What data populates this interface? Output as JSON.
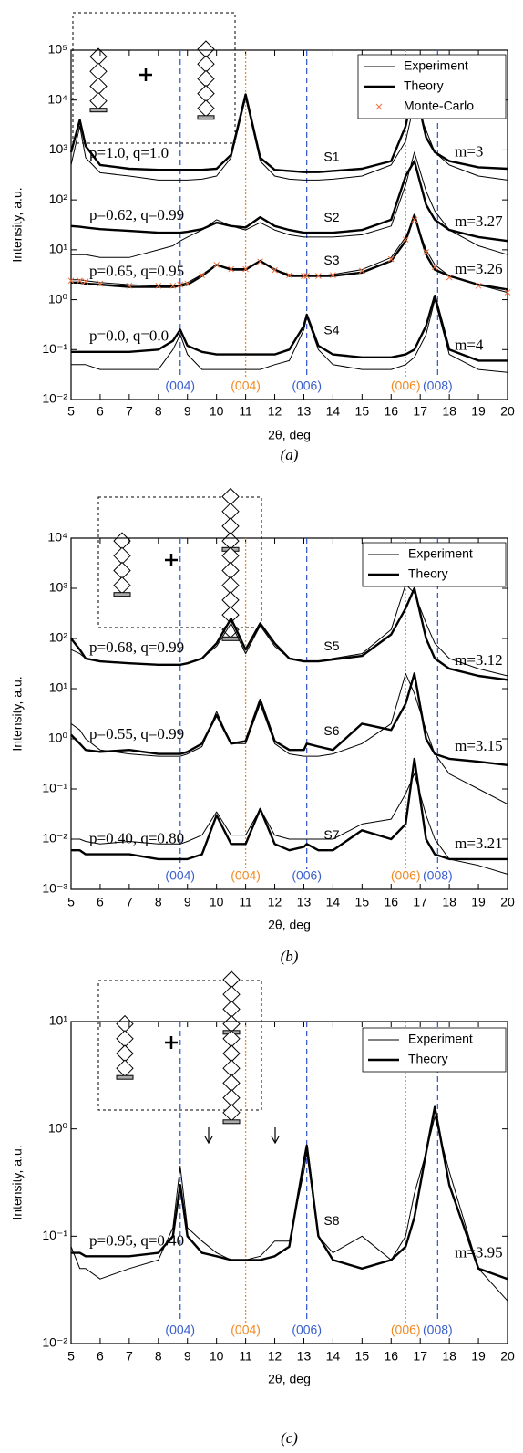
{
  "chart_data": [
    {
      "type": "line",
      "caption": "(a)",
      "xlabel": "2θ, deg",
      "ylabel": "Intensity, a.u.",
      "log_y": true,
      "xlim": [
        5,
        20
      ],
      "xticks": [
        5,
        6,
        7,
        8,
        9,
        10,
        11,
        12,
        13,
        14,
        15,
        16,
        17,
        18,
        19,
        20
      ],
      "ylim": [
        0.01,
        100000
      ],
      "yticks": [
        {
          "value": 0.01,
          "label": "10⁻²"
        },
        {
          "value": 0.1,
          "label": "10⁻¹"
        },
        {
          "value": 1,
          "label": "10⁰"
        },
        {
          "value": 10,
          "label": "10¹"
        },
        {
          "value": 100,
          "label": "10²"
        },
        {
          "value": 1000,
          "label": "10³"
        },
        {
          "value": 10000,
          "label": "10⁴"
        },
        {
          "value": 100000,
          "label": "10⁵"
        }
      ],
      "legend": [
        {
          "name": "Experiment",
          "color": "#000000",
          "width": 1
        },
        {
          "name": "Theory",
          "color": "#000000",
          "width": 2.4
        },
        {
          "name": "Monte-Carlo",
          "color": "#f07040",
          "marker": "x"
        }
      ],
      "reflections": [
        {
          "label": "(004)",
          "x": 8.75,
          "color": "#3a5fcd"
        },
        {
          "label": "(004)",
          "x": 11,
          "color": "#f08a24"
        },
        {
          "label": "(006)",
          "x": 13.1,
          "color": "#3a5fcd"
        },
        {
          "label": "(006)",
          "x": 16.5,
          "color": "#f08a24"
        },
        {
          "label": "(008)",
          "x": 17.6,
          "color": "#3a5fcd"
        }
      ],
      "x": [
        5,
        5.3,
        5.5,
        6,
        7,
        8,
        8.5,
        8.75,
        9,
        9.5,
        10,
        10.5,
        11,
        11.5,
        12,
        12.5,
        13,
        13.1,
        13.5,
        14,
        15,
        16,
        16.5,
        16.8,
        17.2,
        17.5,
        18,
        19,
        20
      ],
      "samples": [
        {
          "name": "S1",
          "params": "p=1.0, q=1.0",
          "m": "m=3",
          "curves": [
            [
              500,
              3000,
              700,
              350,
              300,
              250,
              250,
              250,
              250,
              260,
              300,
              700,
              11000,
              600,
              300,
              260,
              250,
              250,
              250,
              260,
              300,
              500,
              1500,
              9000,
              2500,
              900,
              500,
              300,
              250
            ],
            [
              900,
              4000,
              1200,
              500,
              420,
              400,
              400,
              400,
              400,
              400,
              420,
              800,
              13000,
              700,
              400,
              380,
              360,
              360,
              360,
              380,
              420,
              600,
              3000,
              20000,
              1800,
              900,
              600,
              450,
              420
            ]
          ]
        },
        {
          "name": "S2",
          "params": "p=0.62, q=0.99",
          "m": "m=3.27",
          "curves": [
            [
              8,
              8,
              8,
              7,
              7,
              10,
              12,
              15,
              18,
              25,
              40,
              30,
              25,
              35,
              25,
              20,
              18,
              18,
              18,
              18,
              20,
              30,
              200,
              900,
              150,
              60,
              25,
              12,
              8
            ],
            [
              30,
              29,
              28,
              26,
              24,
              22,
              22,
              22,
              23,
              26,
              35,
              30,
              28,
              45,
              30,
              25,
              22,
              22,
              22,
              22,
              25,
              40,
              300,
              600,
              80,
              40,
              25,
              18,
              15
            ]
          ]
        },
        {
          "name": "S3",
          "params": "p=0.65, q=0.95",
          "m": "m=3.26",
          "curves": [
            [
              2.5,
              2.5,
              2.4,
              2.2,
              2,
              1.9,
              1.9,
              2,
              2.2,
              3.2,
              5,
              4.2,
              4.2,
              6,
              4,
              3.2,
              3,
              3,
              3,
              3.2,
              4,
              7,
              18,
              45,
              10,
              5,
              3,
              2,
              1.4
            ],
            [
              2.2,
              2.2,
              2.1,
              2,
              1.8,
              1.8,
              1.8,
              1.9,
              2,
              3,
              5,
              4,
              4,
              6,
              4,
              3,
              3,
              3,
              3,
              3,
              3.5,
              6,
              15,
              50,
              8,
              4,
              3,
              2,
              1.6
            ],
            [
              2.4,
              2.4,
              2.3,
              2.1,
              1.9,
              1.9,
              1.9,
              2,
              2.1,
              3.1,
              5,
              4.1,
              4.1,
              5.8,
              3.9,
              3.1,
              3,
              3,
              3,
              3.1,
              3.8,
              6.5,
              16,
              40,
              9,
              4.5,
              2.8,
              1.9,
              1.4
            ]
          ]
        },
        {
          "name": "S4",
          "params": "p=0.0, q=0.0",
          "m": "m=4",
          "curves": [
            [
              0.05,
              0.05,
              0.05,
              0.04,
              0.04,
              0.04,
              0.1,
              0.2,
              0.08,
              0.04,
              0.04,
              0.04,
              0.04,
              0.04,
              0.05,
              0.06,
              0.25,
              0.45,
              0.1,
              0.05,
              0.04,
              0.04,
              0.05,
              0.07,
              0.2,
              1.0,
              0.08,
              0.04,
              0.035
            ],
            [
              0.09,
              0.09,
              0.09,
              0.09,
              0.09,
              0.1,
              0.15,
              0.25,
              0.12,
              0.09,
              0.08,
              0.08,
              0.08,
              0.08,
              0.08,
              0.1,
              0.3,
              0.5,
              0.12,
              0.08,
              0.07,
              0.07,
              0.08,
              0.1,
              0.3,
              1.2,
              0.1,
              0.06,
              0.06
            ]
          ]
        }
      ]
    },
    {
      "type": "line",
      "caption": "(b)",
      "xlabel": "2θ, deg",
      "ylabel": "Intensity, a.u.",
      "log_y": true,
      "xlim": [
        5,
        20
      ],
      "xticks": [
        5,
        6,
        7,
        8,
        9,
        10,
        11,
        12,
        13,
        14,
        15,
        16,
        17,
        18,
        19,
        20
      ],
      "ylim": [
        0.001,
        10000
      ],
      "yticks": [
        {
          "value": 0.001,
          "label": "10⁻³"
        },
        {
          "value": 0.01,
          "label": "10⁻²"
        },
        {
          "value": 0.1,
          "label": "10⁻¹"
        },
        {
          "value": 1,
          "label": "10⁰"
        },
        {
          "value": 10,
          "label": "10¹"
        },
        {
          "value": 100,
          "label": "10²"
        },
        {
          "value": 1000,
          "label": "10³"
        },
        {
          "value": 10000,
          "label": "10⁴"
        }
      ],
      "legend": [
        {
          "name": "Experiment",
          "color": "#000000",
          "width": 1
        },
        {
          "name": "Theory",
          "color": "#000000",
          "width": 2.4
        }
      ],
      "reflections": [
        {
          "label": "(004)",
          "x": 8.75,
          "color": "#3a5fcd"
        },
        {
          "label": "(004)",
          "x": 11,
          "color": "#f08a24"
        },
        {
          "label": "(006)",
          "x": 13.1,
          "color": "#3a5fcd"
        },
        {
          "label": "(006)",
          "x": 16.5,
          "color": "#f08a24"
        },
        {
          "label": "(008)",
          "x": 17.6,
          "color": "#3a5fcd"
        }
      ],
      "x": [
        5,
        5.3,
        5.5,
        6,
        7,
        8,
        8.5,
        8.75,
        9,
        9.5,
        10,
        10.5,
        11,
        11.5,
        12,
        12.5,
        13,
        13.1,
        13.5,
        14,
        15,
        16,
        16.5,
        16.8,
        17.2,
        17.5,
        18,
        19,
        20
      ],
      "samples": [
        {
          "name": "S5",
          "params": "p=0.68, q=0.99",
          "m": "m=3.12",
          "curves": [
            [
              60,
              50,
              40,
              35,
              32,
              30,
              30,
              30,
              32,
              40,
              70,
              200,
              50,
              180,
              70,
              40,
              35,
              35,
              35,
              40,
              50,
              150,
              1200,
              800,
              200,
              80,
              40,
              25,
              18
            ],
            [
              100,
              60,
              40,
              35,
              32,
              30,
              30,
              30,
              32,
              40,
              80,
              250,
              60,
              200,
              80,
              40,
              35,
              35,
              35,
              38,
              45,
              120,
              400,
              1000,
              100,
              40,
              25,
              18,
              15
            ]
          ]
        },
        {
          "name": "S6",
          "params": "p=0.55, q=0.99",
          "m": "m=3.15",
          "curves": [
            [
              2,
              1.5,
              1,
              0.6,
              0.5,
              0.45,
              0.45,
              0.45,
              0.5,
              0.7,
              3.5,
              0.8,
              0.8,
              5,
              0.8,
              0.5,
              0.45,
              0.45,
              0.45,
              0.5,
              0.8,
              2,
              20,
              8,
              1.5,
              0.5,
              0.2,
              0.1,
              0.05
            ],
            [
              1.2,
              0.8,
              0.6,
              0.55,
              0.6,
              0.5,
              0.5,
              0.5,
              0.55,
              0.8,
              3,
              0.8,
              0.9,
              6,
              0.9,
              0.6,
              0.6,
              0.8,
              0.7,
              0.6,
              2,
              1.5,
              5,
              20,
              1,
              0.5,
              0.4,
              0.35,
              0.3
            ]
          ]
        },
        {
          "name": "S7",
          "params": "p=0.40, q=0.80",
          "m": "m=3.21",
          "curves": [
            [
              0.01,
              0.01,
              0.009,
              0.008,
              0.009,
              0.008,
              0.008,
              0.008,
              0.009,
              0.012,
              0.035,
              0.012,
              0.012,
              0.04,
              0.012,
              0.01,
              0.01,
              0.01,
              0.01,
              0.01,
              0.02,
              0.025,
              0.08,
              0.2,
              0.03,
              0.01,
              0.004,
              0.003,
              0.002
            ],
            [
              0.006,
              0.006,
              0.005,
              0.005,
              0.005,
              0.004,
              0.004,
              0.004,
              0.004,
              0.005,
              0.03,
              0.008,
              0.008,
              0.04,
              0.008,
              0.006,
              0.007,
              0.008,
              0.006,
              0.006,
              0.015,
              0.01,
              0.02,
              0.4,
              0.01,
              0.005,
              0.004,
              0.004,
              0.004
            ]
          ]
        }
      ]
    },
    {
      "type": "line",
      "caption": "(c)",
      "xlabel": "2θ, deg",
      "ylabel": "Intensity, a.u.",
      "log_y": true,
      "xlim": [
        5,
        20
      ],
      "xticks": [
        5,
        6,
        7,
        8,
        9,
        10,
        11,
        12,
        13,
        14,
        15,
        16,
        17,
        18,
        19,
        20
      ],
      "ylim": [
        0.01,
        10
      ],
      "yticks": [
        {
          "value": 0.01,
          "label": "10⁻²"
        },
        {
          "value": 0.1,
          "label": "10⁻¹"
        },
        {
          "value": 1,
          "label": "10⁰"
        },
        {
          "value": 10,
          "label": "10¹"
        }
      ],
      "legend": [
        {
          "name": "Experiment",
          "color": "#000000",
          "width": 1
        },
        {
          "name": "Theory",
          "color": "#000000",
          "width": 2.4
        }
      ],
      "reflections": [
        {
          "label": "(004)",
          "x": 8.75,
          "color": "#3a5fcd"
        },
        {
          "label": "(004)",
          "x": 11,
          "color": "#f08a24"
        },
        {
          "label": "(006)",
          "x": 13.1,
          "color": "#3a5fcd"
        },
        {
          "label": "(006)",
          "x": 16.5,
          "color": "#f08a24"
        },
        {
          "label": "(008)",
          "x": 17.6,
          "color": "#3a5fcd"
        }
      ],
      "x": [
        5,
        5.3,
        5.5,
        6,
        7,
        8,
        8.5,
        8.75,
        9,
        9.5,
        10,
        10.5,
        11,
        11.5,
        12,
        12.5,
        13,
        13.1,
        13.5,
        14,
        15,
        16,
        16.5,
        16.8,
        17.2,
        17.5,
        18,
        19,
        20
      ],
      "samples": [
        {
          "name": "S8",
          "params": "p=0.95, q=0.40",
          "m": "m=3.95",
          "curves": [
            [
              0.08,
              0.05,
              0.05,
              0.04,
              0.05,
              0.06,
              0.12,
              0.45,
              0.12,
              0.09,
              0.07,
              0.06,
              0.06,
              0.065,
              0.09,
              0.09,
              0.4,
              0.6,
              0.1,
              0.07,
              0.1,
              0.06,
              0.1,
              0.25,
              0.6,
              1.3,
              0.4,
              0.05,
              0.025
            ],
            [
              0.07,
              0.07,
              0.065,
              0.065,
              0.065,
              0.07,
              0.1,
              0.3,
              0.1,
              0.07,
              0.065,
              0.06,
              0.06,
              0.06,
              0.065,
              0.08,
              0.5,
              0.7,
              0.1,
              0.06,
              0.05,
              0.06,
              0.08,
              0.15,
              0.6,
              1.6,
              0.3,
              0.05,
              0.04
            ]
          ]
        }
      ]
    }
  ]
}
